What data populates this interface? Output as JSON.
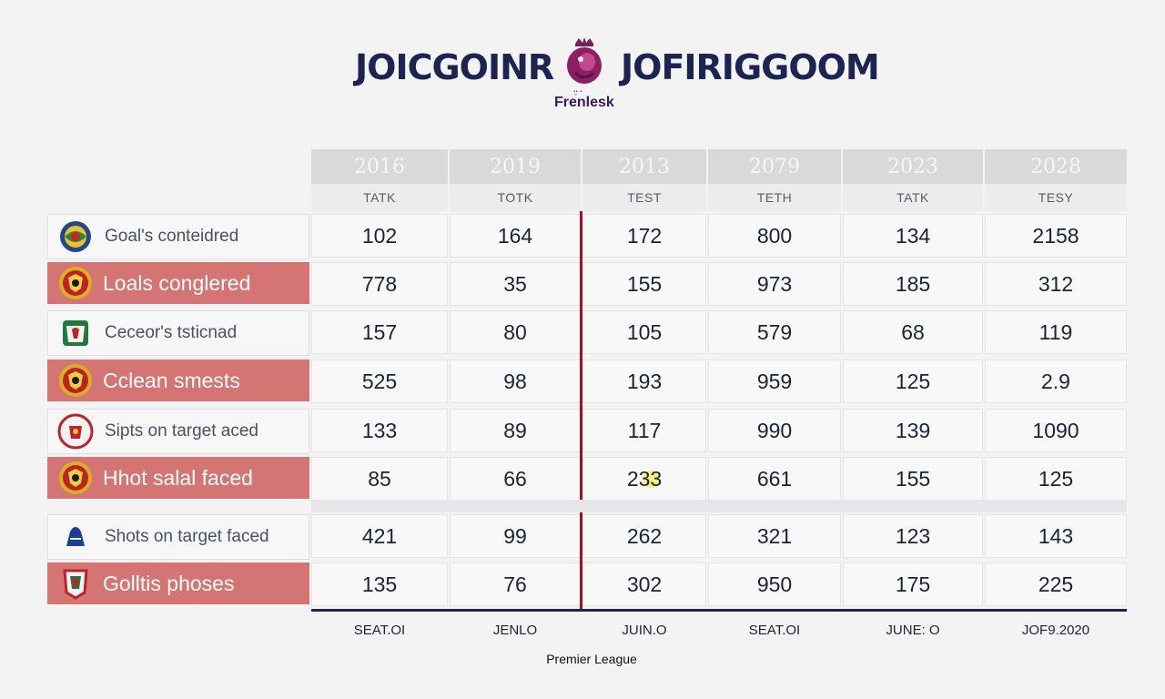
{
  "header": {
    "title_left": "JOICGOINR",
    "title_right": "JOFIRIGGOOM",
    "logo_small_text": "ꞏ̱ꞏ ꞏ",
    "logo_caption": "Frenlesk"
  },
  "columns": [
    {
      "year": "2016",
      "sub": "TATK",
      "footer": "SEAT.OI"
    },
    {
      "year": "2019",
      "sub": "TOTK",
      "footer": "JENLO"
    },
    {
      "year": "2013",
      "sub": "TEST",
      "footer": "JUIN.O"
    },
    {
      "year": "2079",
      "sub": "TETH",
      "footer": "SEAT.OI"
    },
    {
      "year": "2023",
      "sub": "TATK",
      "footer": "JUNE: O"
    },
    {
      "year": "2028",
      "sub": "TESY",
      "footer": "JOF9.2020"
    }
  ],
  "rows": [
    {
      "label": "Goal's conteidred",
      "highlight": false,
      "crest": "globe-crest-icon",
      "values": [
        "102",
        "164",
        "172",
        "800",
        "134",
        "2158"
      ]
    },
    {
      "label": "Loals conglered",
      "highlight": true,
      "crest": "devil-crest-icon",
      "values": [
        "778",
        "35",
        "155",
        "973",
        "185",
        "312"
      ]
    },
    {
      "label": "Ceceor's tsticnad",
      "highlight": false,
      "crest": "liverbird-crest-icon",
      "values": [
        "157",
        "80",
        "105",
        "579",
        "68",
        "119"
      ]
    },
    {
      "label": "Cclean smests",
      "highlight": true,
      "crest": "devil-crest-icon",
      "values": [
        "525",
        "98",
        "193",
        "959",
        "125",
        "2.9"
      ]
    },
    {
      "label": "Sipts on target aced",
      "highlight": false,
      "crest": "red-round-crest-icon",
      "values": [
        "133",
        "89",
        "117",
        "990",
        "139",
        "1090"
      ]
    },
    {
      "label": "Hhot salal faced",
      "highlight": true,
      "crest": "devil-crest-icon",
      "values": [
        "85",
        "66",
        "233",
        "661",
        "155",
        "125"
      ]
    },
    {
      "label": "Shots on target faced",
      "highlight": false,
      "crest": "lion-crest-icon",
      "values": [
        "421",
        "99",
        "262",
        "321",
        "123",
        "143"
      ]
    },
    {
      "label": "Golltis phoses",
      "highlight": true,
      "crest": "liverbird-shield-crest-icon",
      "values": [
        "135",
        "76",
        "302",
        "950",
        "175",
        "225"
      ]
    }
  ],
  "footer_note": "Premier League",
  "colors": {
    "navy": "#1c2451",
    "highlight_row": "#d47574",
    "divider_red": "#a0141c"
  }
}
